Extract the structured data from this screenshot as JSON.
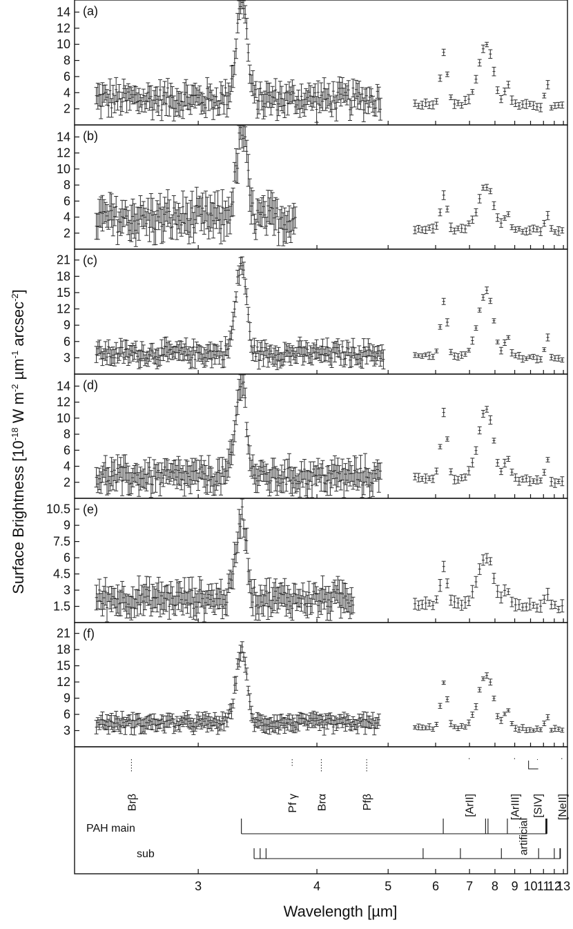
{
  "figure": {
    "ylabel": "Surface Brightness [10",
    "ylabel_exp1": "-18",
    "ylabel_mid1": " W m",
    "ylabel_exp2": "-2",
    "ylabel_mid2": " µm",
    "ylabel_exp3": "-1",
    "ylabel_mid3": " arcsec",
    "ylabel_exp4": "-2",
    "ylabel_end": "]",
    "xlabel": "Wavelength [µm]"
  },
  "chart_data": [
    {
      "type": "scatter",
      "id": "a",
      "panel_label": "(a)",
      "ylim": [
        0,
        15.5
      ],
      "yticks": [
        2,
        4,
        6,
        8,
        10,
        12,
        14
      ],
      "gaps": [
        [
          4.85,
          5.52
        ]
      ],
      "features": [
        [
          3.29,
          8,
          0.04
        ],
        [
          3.32,
          6,
          0.03
        ],
        [
          6.22,
          6.5,
          0.09
        ],
        [
          7.62,
          7.5,
          0.3
        ],
        [
          8.6,
          2.5,
          0.15
        ],
        [
          11.25,
          5,
          0.12
        ]
      ],
      "segments": [
        {
          "range": [
            2.47,
            4.87
          ],
          "base": 3.2,
          "noise": 1.4,
          "err": 1.4
        },
        {
          "range": [
            5.52,
            13.2
          ],
          "base": 2.6,
          "slope": -0.05,
          "noise": 0.25,
          "err": 0.5
        }
      ]
    },
    {
      "type": "scatter",
      "id": "b",
      "panel_label": "(b)",
      "ylim": [
        0,
        15.5
      ],
      "yticks": [
        2,
        4,
        6,
        8,
        10,
        12,
        14
      ],
      "gaps": [
        [
          3.8,
          5.52
        ]
      ],
      "features": [
        [
          3.29,
          7,
          0.04
        ],
        [
          3.32,
          5,
          0.03
        ],
        [
          6.22,
          4.5,
          0.09
        ],
        [
          7.62,
          5.5,
          0.3
        ],
        [
          8.6,
          2,
          0.15
        ],
        [
          11.25,
          3.5,
          0.12
        ]
      ],
      "segments": [
        {
          "range": [
            2.47,
            3.78
          ],
          "base": 3.8,
          "noise": 1.7,
          "err": 2.0
        },
        {
          "range": [
            5.52,
            13.2
          ],
          "base": 2.5,
          "slope": -0.02,
          "noise": 0.25,
          "err": 0.5
        }
      ]
    },
    {
      "type": "scatter",
      "id": "c",
      "panel_label": "(c)",
      "ylim": [
        0,
        23
      ],
      "yticks": [
        3,
        6,
        9,
        12,
        15,
        18,
        21
      ],
      "gaps": [
        [
          4.95,
          5.52
        ]
      ],
      "features": [
        [
          3.29,
          13,
          0.04
        ],
        [
          3.32,
          5,
          0.03
        ],
        [
          6.22,
          10,
          0.09
        ],
        [
          7.62,
          12,
          0.3
        ],
        [
          8.6,
          4,
          0.15
        ],
        [
          11.25,
          6,
          0.12
        ]
      ],
      "segments": [
        {
          "range": [
            2.47,
            4.92
          ],
          "base": 3.8,
          "noise": 1.3,
          "err": 1.6
        },
        {
          "range": [
            5.52,
            13.2
          ],
          "base": 3.3,
          "slope": -0.05,
          "noise": 0.35,
          "err": 0.6
        }
      ]
    },
    {
      "type": "scatter",
      "id": "d",
      "panel_label": "(d)",
      "ylim": [
        0,
        15.5
      ],
      "yticks": [
        2,
        4,
        6,
        8,
        10,
        12,
        14
      ],
      "gaps": [
        [
          4.9,
          5.52
        ]
      ],
      "features": [
        [
          3.29,
          9,
          0.04
        ],
        [
          3.32,
          4,
          0.03
        ],
        [
          6.22,
          8,
          0.09
        ],
        [
          7.62,
          8.5,
          0.3
        ],
        [
          8.6,
          2.8,
          0.15
        ],
        [
          11.25,
          4.5,
          0.12
        ]
      ],
      "segments": [
        {
          "range": [
            2.47,
            4.88
          ],
          "base": 2.7,
          "noise": 1.2,
          "err": 1.6
        },
        {
          "range": [
            5.52,
            13.2
          ],
          "base": 2.6,
          "slope": -0.08,
          "noise": 0.25,
          "err": 0.5
        }
      ]
    },
    {
      "type": "scatter",
      "id": "e",
      "panel_label": "(e)",
      "ylim": [
        0,
        11.5
      ],
      "yticks": [
        1.5,
        3,
        4.5,
        6,
        7.5,
        9,
        10.5
      ],
      "gaps": [
        [
          4.5,
          5.52
        ]
      ],
      "features": [
        [
          3.29,
          5.5,
          0.04
        ],
        [
          3.32,
          3,
          0.03
        ],
        [
          6.22,
          3.5,
          0.09
        ],
        [
          7.62,
          4.5,
          0.3
        ],
        [
          8.6,
          1.5,
          0.15
        ],
        [
          11.25,
          2.3,
          0.12
        ]
      ],
      "segments": [
        {
          "range": [
            2.47,
            4.47
          ],
          "base": 2.2,
          "noise": 0.9,
          "err": 1.2
        },
        {
          "range": [
            5.52,
            13.2
          ],
          "base": 1.8,
          "slope": -0.05,
          "noise": 0.25,
          "err": 0.5
        }
      ]
    },
    {
      "type": "scatter",
      "id": "f",
      "panel_label": "(f)",
      "ylim": [
        0,
        23
      ],
      "yticks": [
        3,
        6,
        9,
        12,
        15,
        18,
        21
      ],
      "gaps": [
        [
          4.88,
          5.52
        ]
      ],
      "features": [
        [
          3.29,
          10,
          0.04
        ],
        [
          3.32,
          5,
          0.03
        ],
        [
          6.22,
          8.5,
          0.09
        ],
        [
          7.62,
          10,
          0.3
        ],
        [
          8.6,
          3.5,
          0.15
        ],
        [
          11.25,
          4,
          0.12
        ]
      ],
      "segments": [
        {
          "range": [
            2.47,
            4.86
          ],
          "base": 4.4,
          "noise": 0.9,
          "err": 1.3
        },
        {
          "range": [
            5.52,
            13.2
          ],
          "base": 3.5,
          "slope": -0.05,
          "noise": 0.3,
          "err": 0.5
        }
      ]
    }
  ],
  "x_axis": {
    "scale": "reciprocal",
    "xlim": [
      2.38,
      13.5
    ],
    "ticks": [
      3,
      4,
      5,
      6,
      7,
      8,
      9,
      10,
      11,
      12,
      13
    ]
  },
  "line_markers": [
    {
      "label": "Brβ",
      "x": 2.63
    },
    {
      "label": "Pf γ",
      "x": 3.74
    },
    {
      "label": "Brα",
      "x": 4.05
    },
    {
      "label": "Pfβ",
      "x": 4.65
    },
    {
      "label": "[ArII]",
      "x": 6.99
    },
    {
      "label": "[ArIII]",
      "x": 8.99
    },
    {
      "label": "artificial",
      "x": 9.5
    },
    {
      "label": "[SIV]",
      "x": 10.51
    },
    {
      "label": "[NeII]",
      "x": 12.81
    }
  ],
  "pah": {
    "main_label": "PAH  main",
    "main": [
      3.3,
      6.2,
      7.6,
      7.7,
      8.6,
      11.2,
      11.25,
      11.3
    ],
    "sub_label": "sub",
    "sub": [
      3.4,
      3.45,
      3.5,
      5.7,
      6.7,
      8.3,
      10.6,
      12.0,
      12.6,
      12.65
    ]
  }
}
